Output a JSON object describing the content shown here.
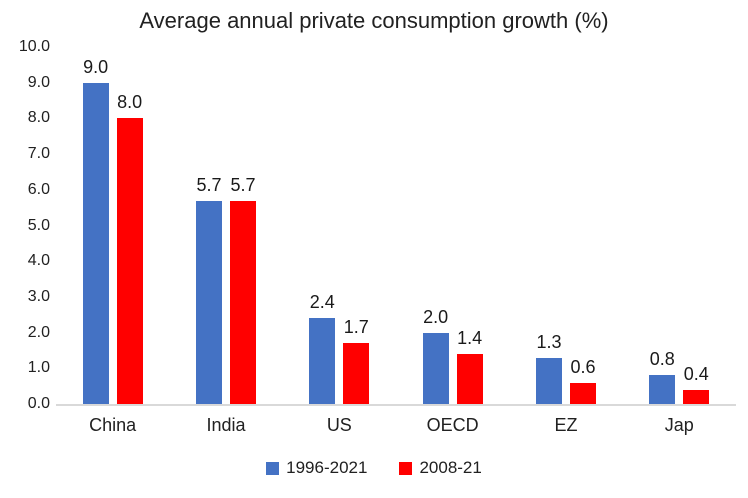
{
  "chart_data": {
    "type": "bar",
    "title": "Average annual private consumption growth (%)",
    "categories": [
      "China",
      "India",
      "US",
      "OECD",
      "EZ",
      "Jap"
    ],
    "series": [
      {
        "name": "1996-2021",
        "color": "#4472C4",
        "values": [
          9.0,
          5.7,
          2.4,
          2.0,
          1.3,
          0.8
        ]
      },
      {
        "name": "2008-21",
        "color": "#FF0000",
        "values": [
          8.0,
          5.7,
          1.7,
          1.4,
          0.6,
          0.4
        ]
      }
    ],
    "ylim": [
      0,
      10
    ],
    "ytick_labels": [
      "10.0",
      "9.0",
      "8.0",
      "7.0",
      "6.0",
      "5.0",
      "4.0",
      "3.0",
      "2.0",
      "1.0",
      "0.0"
    ],
    "grid": false,
    "value_labels": true,
    "legend_position": "bottom",
    "axis_line_color": "#d9d9d9",
    "text_color": "#212121"
  }
}
